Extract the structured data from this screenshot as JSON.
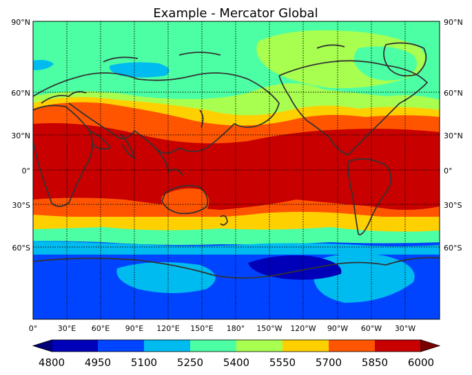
{
  "title": "Example - Mercator Global",
  "lat_labels": [
    "90°N",
    "60°N",
    "30°N",
    "0°",
    "30°S",
    "60°S"
  ],
  "lon_labels": [
    "0°",
    "30°E",
    "60°E",
    "90°E",
    "120°E",
    "150°E",
    "180°",
    "150°W",
    "120°W",
    "90°W",
    "60°W",
    "30°W"
  ],
  "colorbar": {
    "ticks": [
      "4800",
      "4950",
      "5100",
      "5250",
      "5400",
      "5550",
      "5700",
      "5850",
      "6000"
    ],
    "colors": [
      "#0000b8",
      "#0044ff",
      "#00bbf0",
      "#4cffa4",
      "#a8ff50",
      "#ffd000",
      "#ff5500",
      "#c80000"
    ],
    "under_color": "#00007a",
    "over_color": "#7a0000"
  },
  "colors": {
    "ocean_polar": "#0044ff",
    "mid_blue": "#00bbf0",
    "green": "#4cffa4",
    "yellowgreen": "#a8ff50",
    "yellow": "#ffd000",
    "orange": "#ff5500",
    "red": "#c80000",
    "deep_blue": "#0000b8",
    "coast": "#333333"
  }
}
